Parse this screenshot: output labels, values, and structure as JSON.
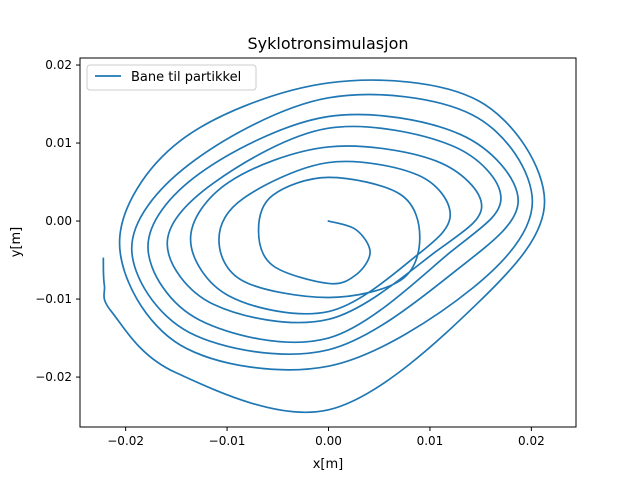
{
  "chart_data": {
    "type": "line",
    "title": "Syklotronsimulasjon",
    "xlabel": "x[m]",
    "ylabel": "y[m]",
    "xlim": [
      -0.0245,
      0.0244
    ],
    "ylim": [
      -0.0264,
      0.0209
    ],
    "xticks": [
      -0.02,
      -0.01,
      0.0,
      0.01,
      0.02
    ],
    "xtick_labels": [
      "−0.02",
      "−0.01",
      "0.00",
      "0.01",
      "0.02"
    ],
    "yticks": [
      -0.02,
      -0.01,
      0.0,
      0.01,
      0.02
    ],
    "ytick_labels": [
      "−0.02",
      "−0.01",
      "0.00",
      "0.01",
      "0.02"
    ],
    "grid": false,
    "legend_position": "top-left",
    "series": [
      {
        "name": "Bane til partikkel",
        "color": "#1f77b4",
        "x": [
          0.0,
          0.0027,
          0.0041,
          0.0027,
          0.0,
          -0.0055,
          -0.0069,
          -0.0055,
          0.0,
          0.0071,
          0.009,
          0.0071,
          0.0,
          -0.0084,
          -0.0108,
          -0.0084,
          0.0,
          0.0088,
          0.012,
          0.0088,
          0.0,
          -0.0098,
          -0.0136,
          -0.0098,
          0.0,
          0.0106,
          0.0151,
          0.0106,
          0.0,
          -0.0113,
          -0.0159,
          -0.0113,
          0.0,
          0.0121,
          0.017,
          0.0121,
          0.0,
          -0.0127,
          -0.0178,
          -0.0127,
          0.0,
          0.013,
          0.0187,
          0.013,
          0.0,
          -0.0137,
          -0.0194,
          -0.0137,
          0.0,
          0.0142,
          0.0201,
          0.0142,
          0.0,
          -0.0146,
          -0.0206,
          -0.0146,
          0.0,
          0.0148,
          0.0213,
          0.0148,
          0.0,
          -0.0151,
          -0.0214,
          -0.0221,
          -0.0222
        ],
        "y": [
          0.0,
          -0.0011,
          -0.004,
          -0.0069,
          -0.008,
          -0.0057,
          -0.0012,
          0.0033,
          0.0056,
          0.0034,
          -0.0021,
          -0.0076,
          -0.0098,
          -0.0077,
          -0.0024,
          0.0029,
          0.0075,
          0.0059,
          0.0008,
          -0.0043,
          -0.0116,
          -0.0096,
          -0.0023,
          0.005,
          0.0095,
          0.0077,
          0.0019,
          -0.0039,
          -0.0126,
          -0.0107,
          -0.0029,
          0.0049,
          0.0119,
          0.0097,
          0.0029,
          -0.0039,
          -0.015,
          -0.0127,
          -0.0033,
          0.0061,
          0.0134,
          0.0111,
          0.0026,
          -0.0059,
          -0.0165,
          -0.0143,
          -0.0035,
          0.0073,
          0.0158,
          0.0136,
          0.0025,
          -0.0086,
          -0.0186,
          -0.0159,
          -0.0028,
          0.0103,
          0.0177,
          0.0154,
          0.0025,
          -0.0104,
          -0.0242,
          -0.0194,
          -0.0116,
          -0.0082,
          -0.0048
        ]
      }
    ]
  }
}
